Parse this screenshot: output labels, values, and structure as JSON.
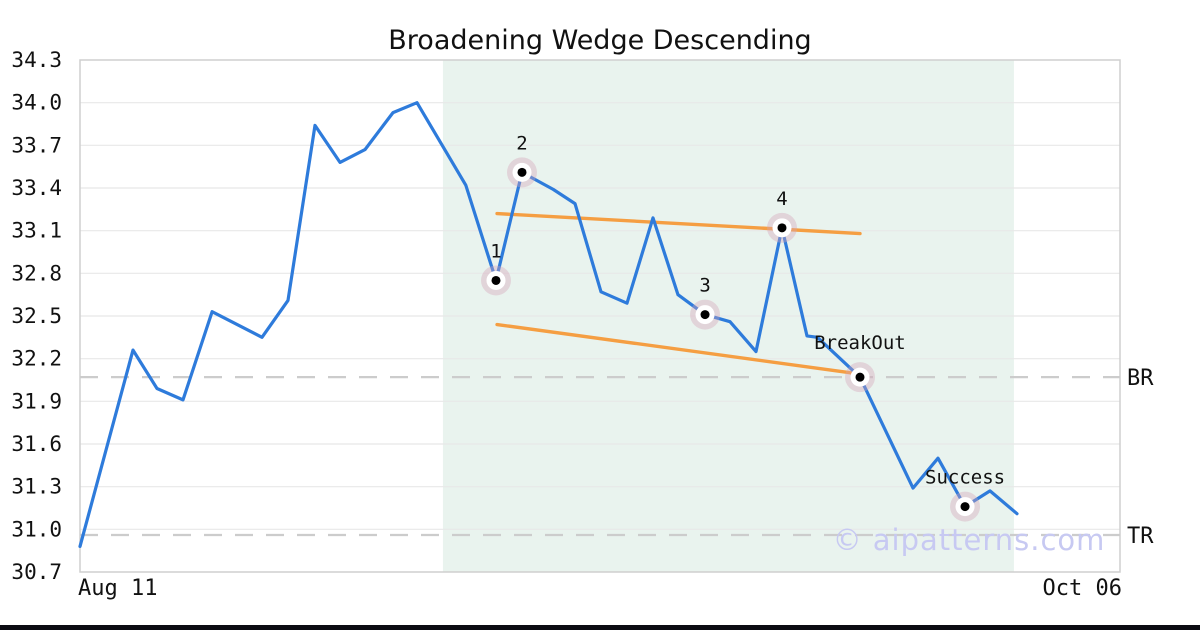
{
  "page": {
    "title": "Broadening Wedge Descending",
    "watermark": "© aipatterns.com"
  },
  "colors": {
    "price_line": "#2e7bdb",
    "trendline": "#f59e42",
    "pattern_region": "#e9f3ee",
    "grid": "#e8e8e8",
    "plot_border": "#cfcfcf",
    "dashed_level": "#cccccc",
    "marker_halo": "rgba(214,162,184,0.38)",
    "marker_ring": "#ffffff",
    "marker_dot": "#000000",
    "text": "#111111",
    "watermark": "#c7c9f2",
    "footer_bar": "#0b0b12"
  },
  "chart_data": {
    "type": "line",
    "title": "Broadening Wedge Descending",
    "watermark": "© aipatterns.com",
    "grid": true,
    "legend": false,
    "ylim": [
      30.7,
      34.3
    ],
    "y_tick_labels": [
      "34.3",
      "34.0",
      "33.7",
      "33.4",
      "33.1",
      "32.8",
      "32.5",
      "32.2",
      "31.9",
      "31.6",
      "31.3",
      "31.0",
      "30.7"
    ],
    "x_tick_labels": [
      "Aug 11",
      "Oct 06"
    ],
    "series": [
      {
        "name": "price",
        "points": [
          [
            0.0,
            30.88
          ],
          [
            0.051,
            32.26
          ],
          [
            0.074,
            31.99
          ],
          [
            0.099,
            31.91
          ],
          [
            0.127,
            32.53
          ],
          [
            0.175,
            32.35
          ],
          [
            0.2,
            32.61
          ],
          [
            0.226,
            33.84
          ],
          [
            0.25,
            33.58
          ],
          [
            0.274,
            33.67
          ],
          [
            0.301,
            33.93
          ],
          [
            0.324,
            34.0
          ],
          [
            0.371,
            33.42
          ],
          [
            0.4,
            32.75
          ],
          [
            0.425,
            33.51
          ],
          [
            0.455,
            33.39
          ],
          [
            0.476,
            33.29
          ],
          [
            0.501,
            32.67
          ],
          [
            0.526,
            32.59
          ],
          [
            0.551,
            33.19
          ],
          [
            0.575,
            32.65
          ],
          [
            0.601,
            32.51
          ],
          [
            0.625,
            32.46
          ],
          [
            0.65,
            32.25
          ],
          [
            0.675,
            33.12
          ],
          [
            0.699,
            32.36
          ],
          [
            0.709,
            32.35
          ],
          [
            0.75,
            32.07
          ],
          [
            0.801,
            31.29
          ],
          [
            0.825,
            31.5
          ],
          [
            0.851,
            31.16
          ],
          [
            0.875,
            31.27
          ],
          [
            0.901,
            31.11
          ]
        ]
      }
    ],
    "pattern_region": {
      "x_start": 0.349,
      "x_end": 0.898
    },
    "trendlines": [
      {
        "name": "upper-trendline",
        "from": [
          0.401,
          33.22
        ],
        "to": [
          0.75,
          33.08
        ]
      },
      {
        "name": "lower-trendline",
        "from": [
          0.401,
          32.44
        ],
        "to": [
          0.742,
          32.1
        ]
      }
    ],
    "levels": [
      {
        "label": "BR",
        "value": 32.07
      },
      {
        "label": "TR",
        "value": 30.96
      }
    ],
    "markers": [
      {
        "label": "1",
        "x": 0.4,
        "value": 32.75
      },
      {
        "label": "2",
        "x": 0.425,
        "value": 33.51
      },
      {
        "label": "3",
        "x": 0.601,
        "value": 32.51
      },
      {
        "label": "4",
        "x": 0.675,
        "value": 33.12
      },
      {
        "label": "BreakOut",
        "x": 0.75,
        "value": 32.07
      },
      {
        "label": "Success",
        "x": 0.851,
        "value": 31.16
      }
    ]
  }
}
